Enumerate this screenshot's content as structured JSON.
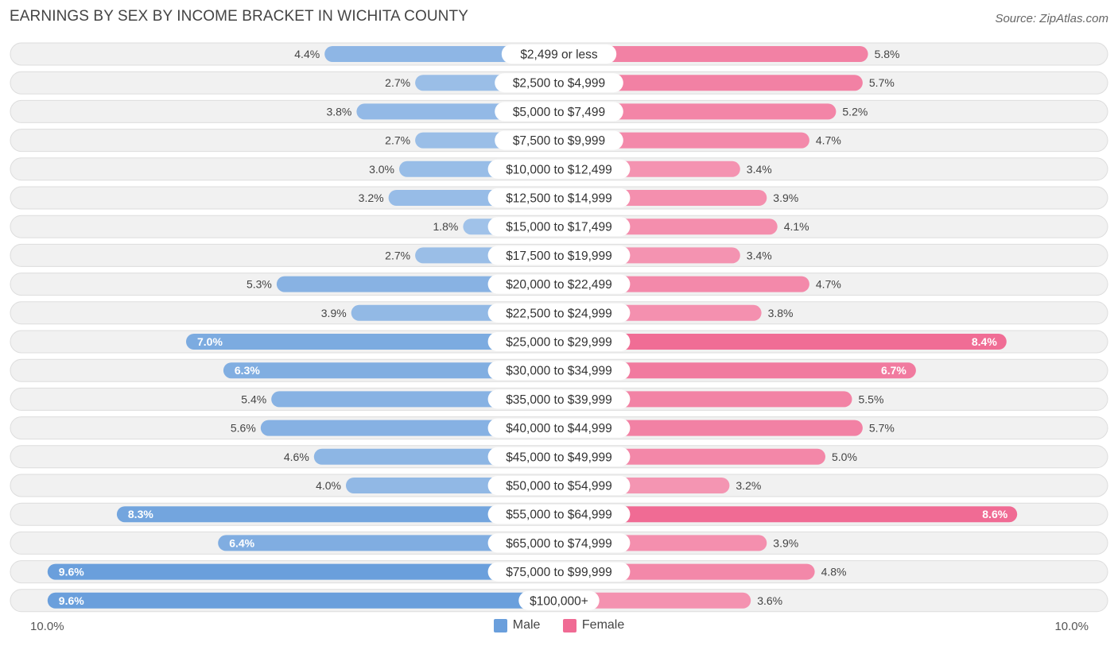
{
  "chart_data": {
    "type": "bar",
    "orientation": "horizontal-diverging",
    "title": "EARNINGS BY SEX BY INCOME BRACKET IN WICHITA COUNTY",
    "source": "Source: ZipAtlas.com",
    "categories": [
      "$2,499 or less",
      "$2,500 to $4,999",
      "$5,000 to $7,499",
      "$7,500 to $9,999",
      "$10,000 to $12,499",
      "$12,500 to $14,999",
      "$15,000 to $17,499",
      "$17,500 to $19,999",
      "$20,000 to $22,499",
      "$22,500 to $24,999",
      "$25,000 to $29,999",
      "$30,000 to $34,999",
      "$35,000 to $39,999",
      "$40,000 to $44,999",
      "$45,000 to $49,999",
      "$50,000 to $54,999",
      "$55,000 to $64,999",
      "$65,000 to $74,999",
      "$75,000 to $99,999",
      "$100,000+"
    ],
    "series": [
      {
        "name": "Male",
        "color": "#6a9fdc",
        "values": [
          4.4,
          2.7,
          3.8,
          2.7,
          3.0,
          3.2,
          1.8,
          2.7,
          5.3,
          3.9,
          7.0,
          6.3,
          5.4,
          5.6,
          4.6,
          4.0,
          8.3,
          6.4,
          9.6,
          9.6
        ],
        "labels": [
          "4.4%",
          "2.7%",
          "3.8%",
          "2.7%",
          "3.0%",
          "3.2%",
          "1.8%",
          "2.7%",
          "5.3%",
          "3.9%",
          "7.0%",
          "6.3%",
          "5.4%",
          "5.6%",
          "4.6%",
          "4.0%",
          "8.3%",
          "6.4%",
          "9.6%",
          "9.6%"
        ]
      },
      {
        "name": "Female",
        "color": "#f06b94",
        "values": [
          5.8,
          5.7,
          5.2,
          4.7,
          3.4,
          3.9,
          4.1,
          3.4,
          4.7,
          3.8,
          8.4,
          6.7,
          5.5,
          5.7,
          5.0,
          3.2,
          8.6,
          3.9,
          4.8,
          3.6
        ],
        "labels": [
          "5.8%",
          "5.7%",
          "5.2%",
          "4.7%",
          "3.4%",
          "3.9%",
          "4.1%",
          "3.4%",
          "4.7%",
          "3.8%",
          "8.4%",
          "6.7%",
          "5.5%",
          "5.7%",
          "5.0%",
          "3.2%",
          "8.6%",
          "3.9%",
          "4.8%",
          "3.6%"
        ]
      }
    ],
    "xlim": [
      -10.0,
      10.0
    ],
    "axis_min_label": "10.0%",
    "axis_max_label": "10.0%",
    "legend": [
      "Male",
      "Female"
    ],
    "legend_position": "bottom-center"
  }
}
